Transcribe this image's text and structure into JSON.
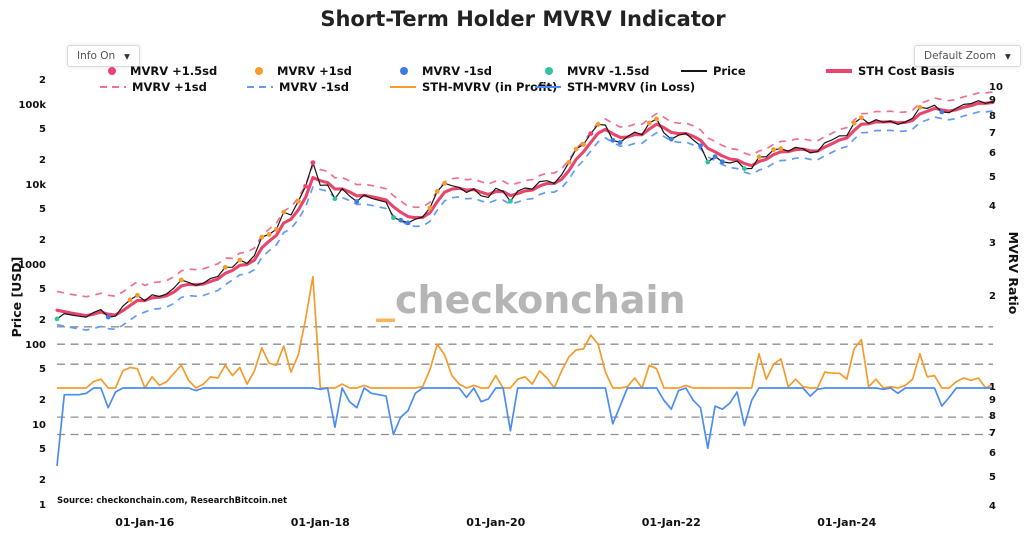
{
  "header": {
    "title": "Short-Term Holder MVRV Indicator"
  },
  "controls": {
    "info_dropdown": {
      "label": "Info On",
      "arrow": "▼"
    },
    "zoom_dropdown": {
      "label": "Default Zoom",
      "arrow": "▼"
    }
  },
  "legend": {
    "rows": [
      [
        {
          "label": "MVRV +1.5sd",
          "glyph": "dot",
          "color": "#ec4170"
        },
        {
          "label": "MVRV +1sd",
          "glyph": "dot",
          "color": "#f59b2c"
        },
        {
          "label": "MVRV -1sd",
          "glyph": "dot",
          "color": "#3d7de3"
        },
        {
          "label": "MVRV -1.5sd",
          "glyph": "dot",
          "color": "#30c39e"
        },
        {
          "label": "Price",
          "glyph": "line",
          "color": "#161616"
        },
        {
          "label": "STH Cost Basis",
          "glyph": "thick-line",
          "color": "#e9446b"
        }
      ],
      [
        {
          "label": "MVRV +1sd",
          "glyph": "dashed-line",
          "color": "#f0718f"
        },
        {
          "label": "MVRV -1sd",
          "glyph": "dashed-line",
          "color": "#619bf7"
        },
        {
          "label": "STH-MVRV (in Profit)",
          "glyph": "line",
          "color": "#f59b2c"
        },
        {
          "label": "STH-MVRV (in Loss)",
          "glyph": "line",
          "color": "#4b8cf5"
        }
      ]
    ]
  },
  "watermark": {
    "prefix": "_",
    "text": "checkonchain",
    "prefix_color": "#fbb45c",
    "text_color": "#b5b5b5"
  },
  "source_note": "Source: checkonchain.com, ResearchBitcoin.net",
  "axes": {
    "left": {
      "title": "Price [USD]",
      "scale": "log",
      "ticks": [
        [
          "2",
          200000
        ],
        [
          "100k",
          100000
        ],
        [
          "5",
          50000
        ],
        [
          "2",
          20000
        ],
        [
          "10k",
          10000
        ],
        [
          "5",
          5000
        ],
        [
          "2",
          2000
        ],
        [
          "1000",
          1000
        ],
        [
          "5",
          500
        ],
        [
          "2",
          200
        ],
        [
          "100",
          100
        ],
        [
          "5",
          50
        ],
        [
          "2",
          20
        ],
        [
          "10",
          10
        ],
        [
          "5",
          5
        ],
        [
          "2",
          2
        ],
        [
          "1",
          1
        ]
      ]
    },
    "right": {
      "title": "MVRV Ratio",
      "scale": "log",
      "ticks": [
        [
          "10",
          10
        ],
        [
          "9",
          9
        ],
        [
          "8",
          8
        ],
        [
          "7",
          7
        ],
        [
          "6",
          6
        ],
        [
          "5",
          5
        ],
        [
          "4",
          4
        ],
        [
          "3",
          3
        ],
        [
          "2",
          2
        ],
        [
          "1",
          1
        ],
        [
          "9",
          0.9
        ],
        [
          "8",
          0.8
        ],
        [
          "7",
          0.7
        ],
        [
          "6",
          0.6
        ],
        [
          "5",
          0.5
        ],
        [
          "4",
          0.4
        ]
      ]
    },
    "bottom": {
      "ticks": [
        [
          "01-Jan-16",
          12
        ],
        [
          "01-Jan-18",
          36
        ],
        [
          "01-Jan-20",
          60
        ],
        [
          "01-Jan-22",
          84
        ],
        [
          "01-Jan-24",
          108
        ]
      ]
    }
  },
  "chart_data": {
    "type": "line",
    "title": "Short-Term Holder MVRV Indicator",
    "x_start_month": "2015-01",
    "x_step": "1 month",
    "x_count": 129,
    "left_axis": {
      "label": "Price [USD]",
      "scale": "log",
      "range": [
        1,
        200000
      ]
    },
    "right_axis": {
      "label": "MVRV Ratio",
      "scale": "log",
      "range": [
        0.4,
        10
      ]
    },
    "gridlines_mvrv": [
      1.6,
      1.4,
      1.2,
      0.8,
      0.7
    ],
    "baseline_mvrv": 1,
    "legend_position": "top",
    "band_multipliers_by_year": {
      "2015": [
        1.72,
        0.66
      ],
      "2016": [
        1.55,
        0.72
      ],
      "2017": [
        1.42,
        0.76
      ],
      "2018": [
        1.38,
        0.78
      ],
      "default": [
        1.35,
        0.78
      ]
    },
    "markers": {
      "plus_1_5sd": {
        "threshold": 1.5,
        "color": "#ec4170"
      },
      "plus_1sd": {
        "threshold": 1.15,
        "color": "#f59b2c"
      },
      "minus_1sd": {
        "threshold": 0.87,
        "color": "#3d7de3"
      },
      "minus_1_5sd": {
        "threshold": 0.75,
        "color": "#30c39e"
      }
    },
    "series": [
      {
        "name": "Price",
        "axis": "left",
        "color": "#161616",
        "values": [
          218,
          254,
          244,
          236,
          230,
          263,
          285,
          230,
          236,
          314,
          377,
          430,
          368,
          437,
          416,
          448,
          531,
          670,
          624,
          573,
          609,
          700,
          742,
          963,
          965,
          1190,
          1080,
          1350,
          2300,
          2480,
          2875,
          4700,
          4340,
          6450,
          9900,
          19600,
          10200,
          10300,
          6930,
          9240,
          7490,
          6400,
          7750,
          7010,
          6630,
          6300,
          4020,
          3740,
          3460,
          3850,
          4100,
          5320,
          8550,
          10800,
          10100,
          9600,
          8300,
          9200,
          7550,
          7200,
          9350,
          8550,
          6440,
          8630,
          9450,
          9140,
          11350,
          11650,
          10780,
          13800,
          19700,
          29000,
          33100,
          45200,
          58800,
          57750,
          37300,
          35000,
          41500,
          47150,
          43800,
          61300,
          69000,
          46200,
          38500,
          43200,
          45500,
          37650,
          31800,
          19950,
          23300,
          20050,
          19400,
          20500,
          16500,
          16550,
          23100,
          23150,
          28450,
          29250,
          27200,
          30450,
          29250,
          25950,
          26950,
          34650,
          37700,
          42250,
          42550,
          61150,
          71300,
          60650,
          67500,
          62700,
          64600,
          58950,
          63300,
          70200,
          96400,
          93400,
          102400,
          84350,
          82500,
          94200,
          104600,
          107100,
          116500,
          108200,
          114000
        ]
      },
      {
        "name": "STH Cost Basis",
        "axis": "left",
        "color": "#e9446b",
        "values": [
          280,
          268,
          257,
          248,
          240,
          250,
          266,
          250,
          244,
          276,
          321,
          370,
          369,
          400,
          407,
          425,
          473,
          562,
          590,
          582,
          594,
          642,
          687,
          811,
          880,
          1020,
          1047,
          1183,
          1686,
          2043,
          2417,
          3444,
          3847,
          5018,
          7215,
          12788,
          11623,
          11028,
          9184,
          9209,
          8435,
          7519,
          7623,
          7347,
          7024,
          6698,
          5493,
          4704,
          4144,
          4012,
          4052,
          4623,
          6390,
          8375,
          9151,
          9353,
          8879,
          9023,
          8360,
          7838,
          8518,
          8532,
          7591,
          8059,
          8685,
          8890,
          9997,
          10741,
          10759,
          12127,
          15535,
          21594,
          26772,
          35065,
          45746,
          51148,
          44916,
          40454,
          40925,
          43726,
          43759,
          51652,
          59459,
          53492,
          46746,
          45150,
          45308,
          41862,
          37334,
          29511,
          26716,
          23716,
          21774,
          21201,
          19086,
          17945,
          20265,
          21563,
          24662,
          26727,
          26940,
          28520,
          28849,
          27545,
          27277,
          30595,
          33792,
          37598,
          39826,
          49422,
          59267,
          59889,
          63314,
          63038,
          63741,
          61585,
          62357,
          65886,
          79617,
          85819,
          93280,
          89261,
          86219,
          89810,
          96466,
          101251,
          108113,
          108152,
          110784
        ]
      },
      {
        "name": "STH-MVRV",
        "axis": "right",
        "profit_color": "#f59b2c",
        "loss_color": "#4b8cf5",
        "values": [
          0.55,
          0.95,
          0.95,
          0.95,
          0.96,
          1.05,
          1.07,
          0.86,
          0.97,
          1.14,
          1.17,
          1.16,
          1.0,
          1.09,
          1.02,
          1.05,
          1.12,
          1.19,
          1.06,
          0.98,
          1.03,
          1.09,
          1.08,
          1.19,
          1.1,
          1.17,
          1.03,
          1.14,
          1.36,
          1.21,
          1.19,
          1.38,
          1.13,
          1.29,
          1.7,
          2.35,
          0.99,
          1.0,
          0.74,
          1.03,
          0.9,
          0.86,
          1.02,
          0.96,
          0.95,
          0.94,
          0.7,
          0.8,
          0.84,
          0.96,
          1.01,
          1.15,
          1.4,
          1.29,
          1.1,
          1.03,
          0.93,
          1.02,
          0.9,
          0.92,
          1.1,
          1.0,
          0.72,
          1.07,
          1.09,
          1.03,
          1.14,
          1.08,
          1.0,
          1.14,
          1.27,
          1.34,
          1.35,
          1.5,
          1.4,
          1.13,
          0.76,
          0.87,
          1.01,
          1.08,
          1.0,
          1.19,
          1.16,
          0.91,
          0.85,
          0.98,
          1.02,
          0.91,
          0.86,
          0.63,
          0.87,
          0.85,
          0.89,
          0.97,
          0.75,
          0.91,
          1.3,
          1.07,
          1.2,
          1.25,
          1.01,
          1.07,
          1.01,
          0.94,
          0.99,
          1.13,
          1.12,
          1.12,
          1.07,
          1.35,
          1.45,
          1.01,
          1.07,
          0.99,
          1.01,
          0.96,
          1.02,
          1.07,
          1.3,
          1.09,
          1.1,
          0.87,
          0.93,
          1.05,
          1.08,
          1.06,
          1.08,
          1.0,
          1.03
        ]
      }
    ]
  }
}
